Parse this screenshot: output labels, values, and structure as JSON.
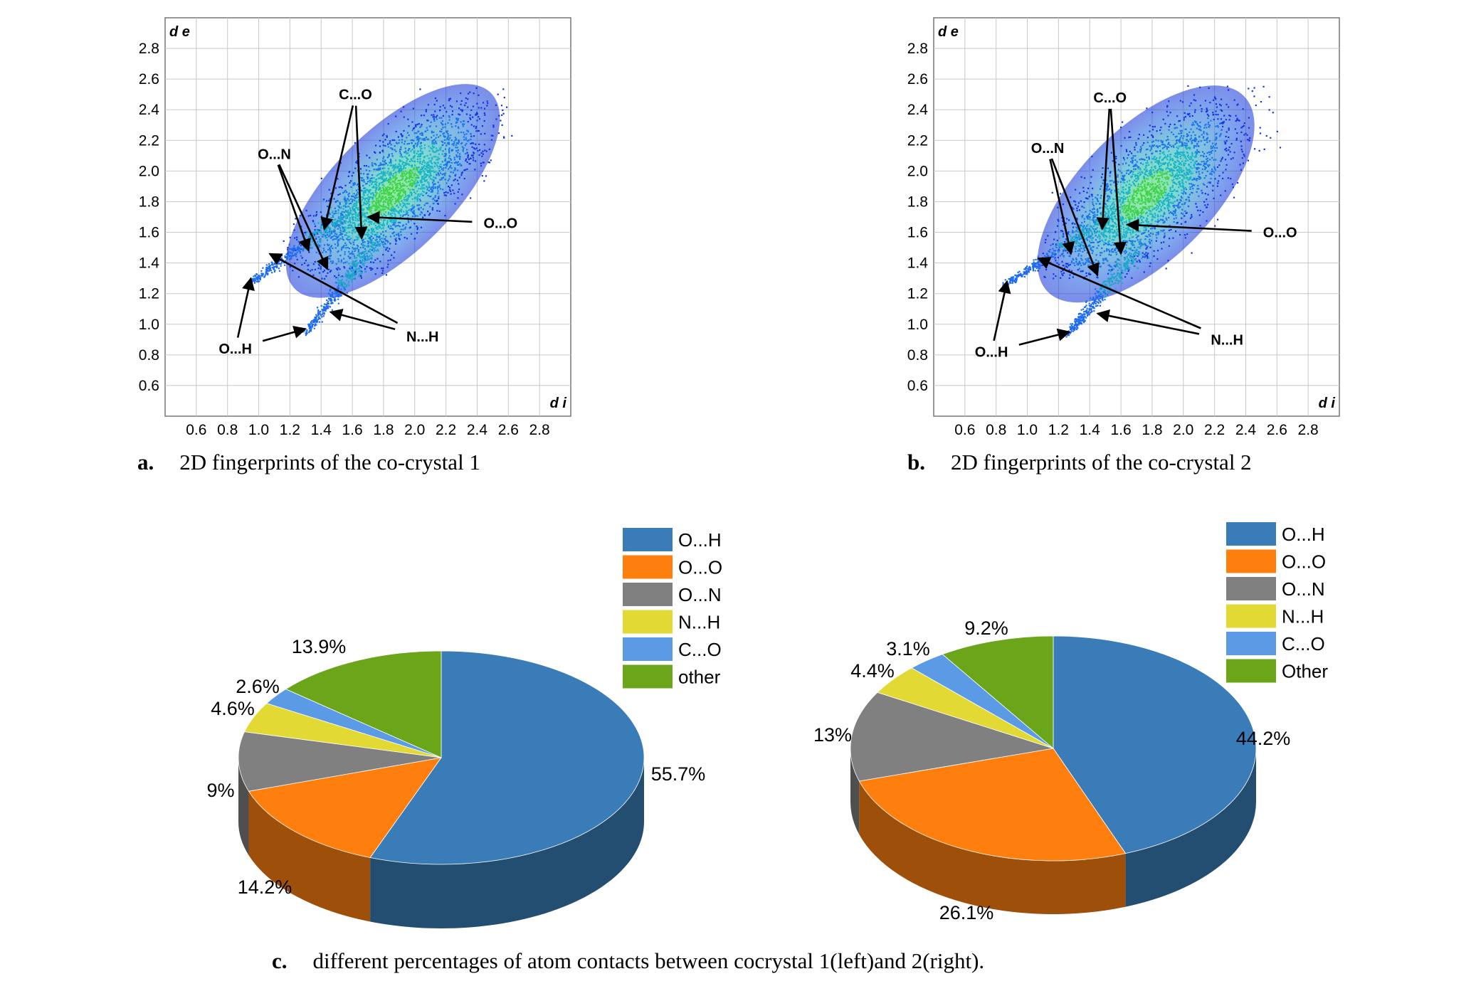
{
  "chart_data": [
    {
      "type": "scatter",
      "panel_label": "a.",
      "caption": "2D fingerprints of the co-crystal 1",
      "xlabel": "d i",
      "ylabel": "d e",
      "xlim": [
        0.4,
        3.0
      ],
      "ylim": [
        0.4,
        3.0
      ],
      "x_ticks": [
        "0.6",
        "0.8",
        "1.0",
        "1.2",
        "1.4",
        "1.6",
        "1.8",
        "2.0",
        "2.2",
        "2.4",
        "2.6",
        "2.8"
      ],
      "y_ticks": [
        "0.6",
        "0.8",
        "1.0",
        "1.2",
        "1.4",
        "1.6",
        "1.8",
        "2.0",
        "2.2",
        "2.4",
        "2.6",
        "2.8"
      ],
      "grid": true,
      "annotations": [
        {
          "text": "C...O",
          "x": 1.62,
          "y": 2.5,
          "targets": [
            [
              1.42,
              1.62
            ],
            [
              1.66,
              1.56
            ]
          ]
        },
        {
          "text": "O...N",
          "x": 1.1,
          "y": 2.11,
          "targets": [
            [
              1.32,
              1.48
            ],
            [
              1.44,
              1.36
            ]
          ]
        },
        {
          "text": "O...O",
          "x": 2.55,
          "y": 1.66,
          "targets": [
            [
              1.7,
              1.7
            ]
          ]
        },
        {
          "text": "O...H",
          "x": 0.85,
          "y": 0.84,
          "targets": [
            [
              0.95,
              1.3
            ],
            [
              1.3,
              0.97
            ]
          ]
        },
        {
          "text": "N...H",
          "x": 2.05,
          "y": 0.92,
          "targets": [
            [
              1.07,
              1.46
            ],
            [
              1.46,
              1.08
            ]
          ]
        }
      ]
    },
    {
      "type": "scatter",
      "panel_label": "b.",
      "caption": "2D fingerprints of the co-crystal 2",
      "xlabel": "d i",
      "ylabel": "d e",
      "xlim": [
        0.4,
        3.0
      ],
      "ylim": [
        0.4,
        3.0
      ],
      "x_ticks": [
        "0.6",
        "0.8",
        "1.0",
        "1.2",
        "1.4",
        "1.6",
        "1.8",
        "2.0",
        "2.2",
        "2.4",
        "2.6",
        "2.8"
      ],
      "y_ticks": [
        "0.6",
        "0.8",
        "1.0",
        "1.2",
        "1.4",
        "1.6",
        "1.8",
        "2.0",
        "2.2",
        "2.4",
        "2.6",
        "2.8"
      ],
      "grid": true,
      "annotations": [
        {
          "text": "C...O",
          "x": 1.53,
          "y": 2.48,
          "targets": [
            [
              1.48,
              1.62
            ],
            [
              1.6,
              1.46
            ]
          ]
        },
        {
          "text": "O...N",
          "x": 1.13,
          "y": 2.15,
          "targets": [
            [
              1.28,
              1.46
            ],
            [
              1.45,
              1.32
            ]
          ]
        },
        {
          "text": "O...O",
          "x": 2.62,
          "y": 1.6,
          "targets": [
            [
              1.64,
              1.65
            ]
          ]
        },
        {
          "text": "O...H",
          "x": 0.77,
          "y": 0.82,
          "targets": [
            [
              0.87,
              1.28
            ],
            [
              1.27,
              0.95
            ]
          ]
        },
        {
          "text": "N...H",
          "x": 2.28,
          "y": 0.9,
          "targets": [
            [
              1.07,
              1.43
            ],
            [
              1.45,
              1.07
            ]
          ]
        }
      ]
    },
    {
      "type": "pie",
      "legend": [
        "O...H",
        "O...O",
        "O...N",
        "N...H",
        "C...O",
        "other"
      ],
      "labels": [
        "55.7%",
        "14.2%",
        "9%",
        "4.6%",
        "2.6%",
        "13.9%"
      ],
      "values": [
        55.7,
        14.2,
        9,
        4.6,
        2.6,
        13.9
      ],
      "colors": [
        "#3a7cb8",
        "#ff7f0e",
        "#808080",
        "#e3d934",
        "#5b9be5",
        "#6aa51a"
      ],
      "legend_position": "top-right"
    },
    {
      "type": "pie",
      "legend": [
        "O...H",
        "O...O",
        "O...N",
        "N...H",
        "C...O",
        "Other"
      ],
      "labels": [
        "44.2%",
        "26.1%",
        "13%",
        "4.4%",
        "3.1%",
        "9.2%"
      ],
      "values": [
        44.2,
        26.1,
        13,
        4.4,
        3.1,
        9.2
      ],
      "colors": [
        "#3a7cb8",
        "#ff7f0e",
        "#808080",
        "#e3d934",
        "#5b9be5",
        "#6aa51a"
      ],
      "legend_position": "top-right"
    }
  ],
  "caption_c": {
    "label": "c.",
    "text": "different percentages of atom contacts between cocrystal 1(left)and 2(right)."
  }
}
